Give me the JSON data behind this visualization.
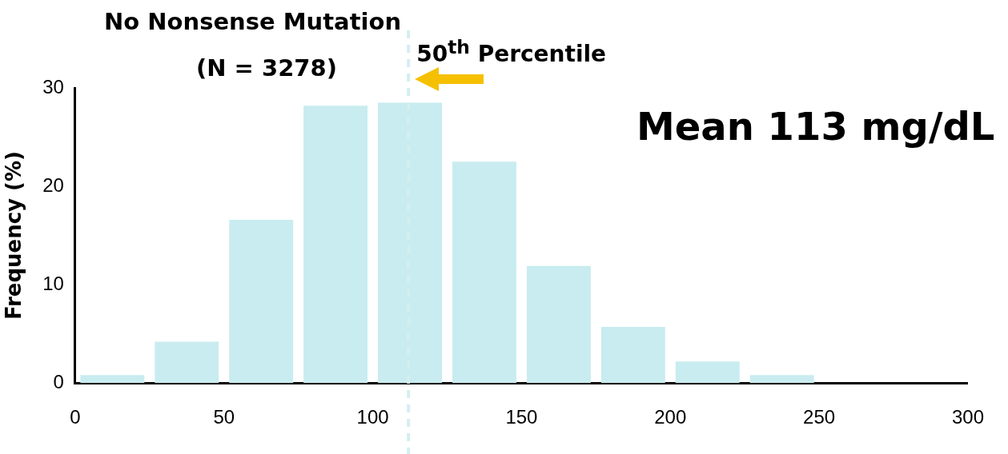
{
  "chart_data": {
    "type": "histogram",
    "title": "No Nonsense Mutation",
    "subtitle": "(N = 3278)",
    "ylabel": "Frequency (%)",
    "bins": [
      0,
      25,
      50,
      75,
      100,
      125,
      150,
      175,
      200,
      225,
      250
    ],
    "values": [
      0.8,
      4.2,
      16.6,
      28.2,
      28.5,
      22.5,
      11.9,
      5.7,
      2.2,
      0.8
    ],
    "color": "#c8ecf0",
    "xlim": [
      0,
      300
    ],
    "xticks": [
      0,
      50,
      100,
      150,
      200,
      250,
      300
    ],
    "ylim": [
      0,
      30
    ],
    "yticks": [
      0,
      10,
      20,
      30
    ],
    "ref_lines": [
      {
        "axis": "x",
        "value": 112,
        "label": "50$^{th}$ Percentile",
        "color": "#d4eef0",
        "line_style": "dashed"
      }
    ],
    "annotations": [
      "Mean 113 mg/dL"
    ],
    "grid": false,
    "legend": false
  }
}
